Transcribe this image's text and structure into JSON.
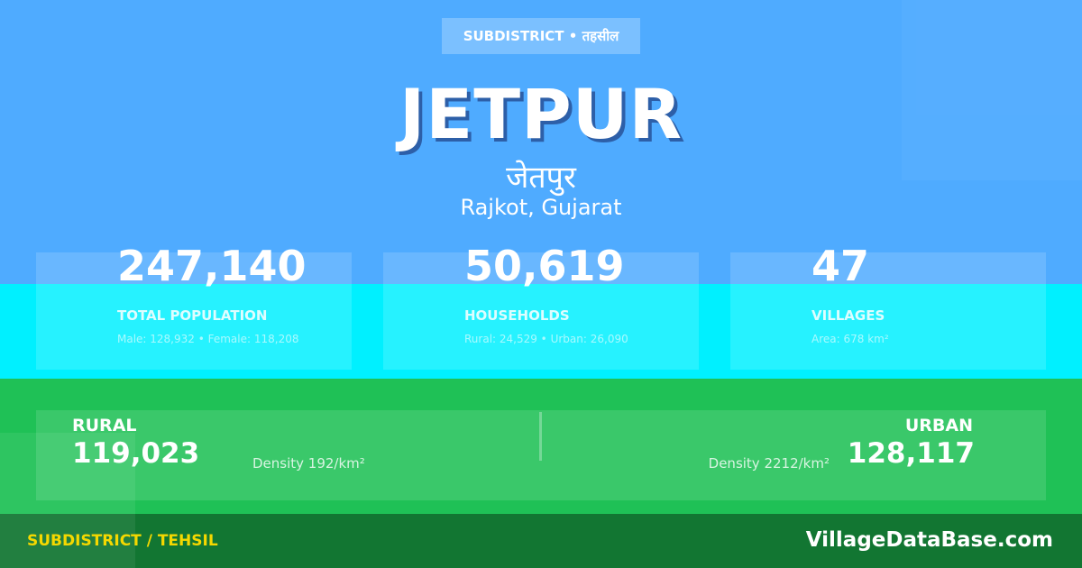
{
  "colors": {
    "top": "#4fabff",
    "stats_band": "#00f0ff",
    "rural_urban_band": "#1fc156",
    "footer": "#127632",
    "footer_label": "#f5d800"
  },
  "header": {
    "badge": "SUBDISTRICT • तहसील",
    "title": "JETPUR",
    "title_hindi": "जेतपुर",
    "location": "Rajkot, Gujarat"
  },
  "stats": [
    {
      "value": "247,140",
      "label": "TOTAL POPULATION",
      "detail": "Male: 128,932 • Female: 118,208"
    },
    {
      "value": "50,619",
      "label": "HOUSEHOLDS",
      "detail": "Rural: 24,529 • Urban: 26,090"
    },
    {
      "value": "47",
      "label": "VILLAGES",
      "detail": "Area: 678 km²"
    }
  ],
  "rural": {
    "label": "RURAL",
    "value": "119,023",
    "density": "Density 192/km²"
  },
  "urban": {
    "label": "URBAN",
    "value": "128,117",
    "density": "Density 2212/km²"
  },
  "footer": {
    "category": "SUBDISTRICT / TEHSIL",
    "site": "VillageDataBase.com"
  }
}
